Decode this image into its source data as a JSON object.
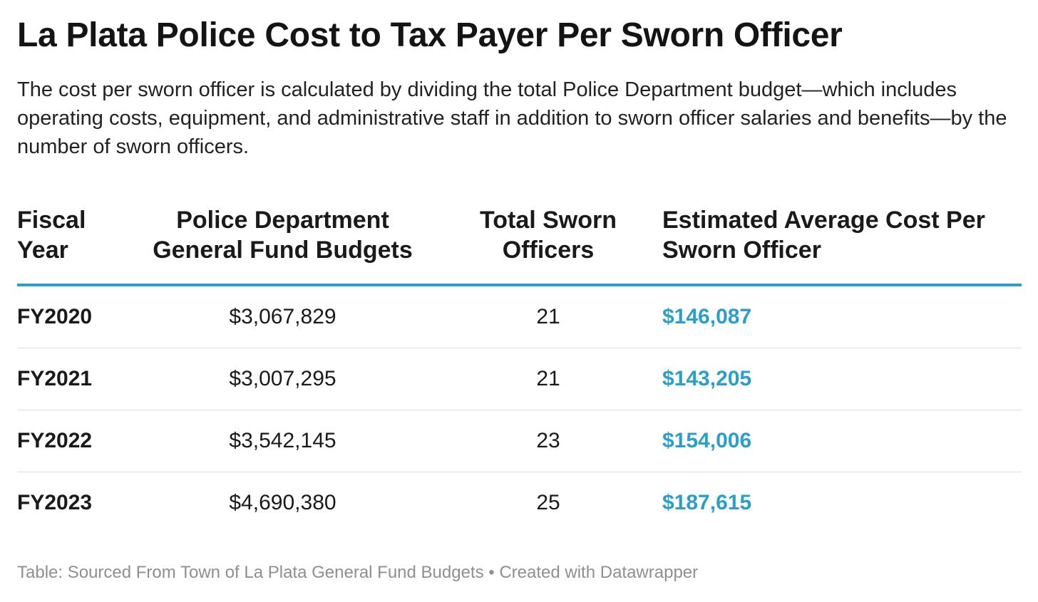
{
  "title": "La Plata Police Cost to Tax Payer Per Sworn Officer",
  "description": "The cost per sworn officer is calculated by dividing the total Police Department budget—which includes operating costs, equipment, and administrative staff in addition to sworn officer salaries and benefits—by the number of sworn officers.",
  "footer": "Table: Sourced From Town of La Plata General Fund Budgets • Created with Datawrapper",
  "colors": {
    "accent": "#2a9fca",
    "footer": "#8f8f8f",
    "divider": "#dedede"
  },
  "chart_data": {
    "type": "table",
    "title": "La Plata Police Cost to Tax Payer Per Sworn Officer",
    "columns": [
      [
        "Fiscal",
        "Year"
      ],
      [
        "Police Department",
        "General Fund Budgets"
      ],
      [
        "Total Sworn",
        "Officers"
      ],
      [
        "Estimated Average Cost Per",
        "Sworn Officer"
      ]
    ],
    "rows": [
      [
        "FY2020",
        "$3,067,829",
        "21",
        "$146,087"
      ],
      [
        "FY2021",
        "$3,007,295",
        "21",
        "$143,205"
      ],
      [
        "FY2022",
        "$3,542,145",
        "23",
        "$154,006"
      ],
      [
        "FY2023",
        "$4,690,380",
        "25",
        "$187,615"
      ]
    ]
  }
}
